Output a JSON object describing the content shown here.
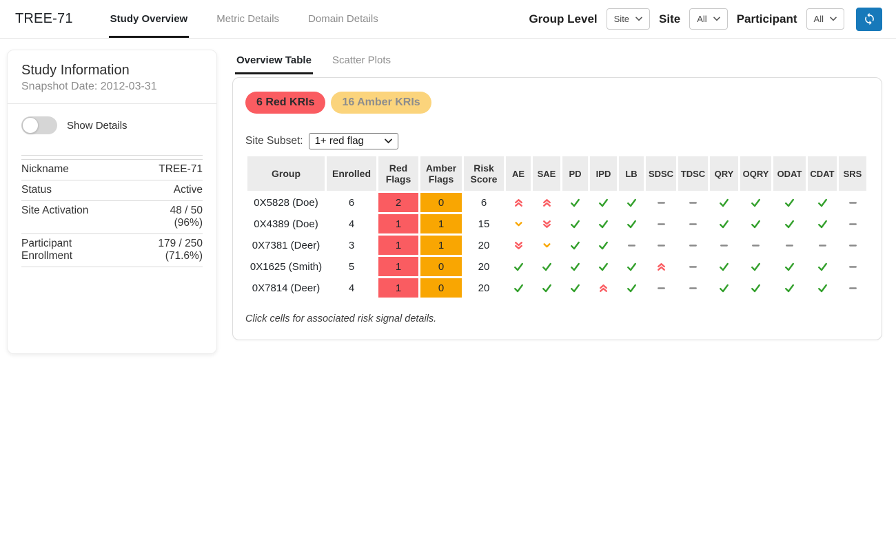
{
  "colors": {
    "red": "#fa5c61",
    "amber": "#f9a602",
    "amber_badge": "#fbd47c",
    "green": "#33a02c",
    "grey": "#8a8a8a",
    "blue": "#1779ba",
    "header_grey": "#ececec"
  },
  "topbar": {
    "title": "TREE-71",
    "tabs": [
      {
        "label": "Study Overview",
        "active": true
      },
      {
        "label": "Metric Details",
        "active": false
      },
      {
        "label": "Domain Details",
        "active": false
      }
    ],
    "filters": [
      {
        "label": "Group Level",
        "value": "Site"
      },
      {
        "label": "Site",
        "value": "All"
      },
      {
        "label": "Participant",
        "value": "All"
      }
    ]
  },
  "study_info": {
    "title": "Study Information",
    "snapshot": "Snapshot Date: 2012-03-31",
    "toggle_label": "Show Details",
    "toggle_state": "off",
    "rows": [
      {
        "label": "Nickname",
        "value": "TREE-71"
      },
      {
        "label": "Status",
        "value": "Active"
      },
      {
        "label": "Site Activation",
        "value": "48 / 50\n(96%)"
      },
      {
        "label": "Participant Enrollment",
        "value": "179 / 250\n(71.6%)"
      }
    ]
  },
  "main": {
    "tabs": [
      {
        "label": "Overview Table",
        "active": true
      },
      {
        "label": "Scatter Plots",
        "active": false
      }
    ],
    "badges": {
      "red": "6 Red KRIs",
      "amber": "16 Amber KRIs"
    },
    "site_subset": {
      "label": "Site Subset:",
      "value": "1+ red flag"
    },
    "footnote": "Click cells for associated risk signal details."
  },
  "kri_table": {
    "columns": [
      "Group",
      "Enrolled",
      "Red Flags",
      "Amber Flags",
      "Risk Score",
      "AE",
      "SAE",
      "PD",
      "IPD",
      "LB",
      "SDSC",
      "TDSC",
      "QRY",
      "OQRY",
      "ODAT",
      "CDAT",
      "SRS"
    ],
    "icon_legend": {
      "check": "within thresholds",
      "dash": "no data",
      "up2-red": "red flag increasing",
      "down2-red": "red flag decreasing",
      "down1-amber": "amber flag decreasing"
    },
    "rows": [
      {
        "group": "0X5828 (Doe)",
        "enrolled": 6,
        "red_flags": 2,
        "amber_flags": 0,
        "risk_score": 6,
        "kris": [
          "up2-red",
          "up2-red",
          "check",
          "check",
          "check",
          "dash",
          "dash",
          "check",
          "check",
          "check",
          "check",
          "dash"
        ]
      },
      {
        "group": "0X4389 (Doe)",
        "enrolled": 4,
        "red_flags": 1,
        "amber_flags": 1,
        "risk_score": 15,
        "kris": [
          "down1-amber",
          "down2-red",
          "check",
          "check",
          "check",
          "dash",
          "dash",
          "check",
          "check",
          "check",
          "check",
          "dash"
        ]
      },
      {
        "group": "0X7381 (Deer)",
        "enrolled": 3,
        "red_flags": 1,
        "amber_flags": 1,
        "risk_score": 20,
        "kris": [
          "down2-red",
          "down1-amber",
          "check",
          "check",
          "dash",
          "dash",
          "dash",
          "dash",
          "dash",
          "dash",
          "dash",
          "dash"
        ]
      },
      {
        "group": "0X1625 (Smith)",
        "enrolled": 5,
        "red_flags": 1,
        "amber_flags": 0,
        "risk_score": 20,
        "kris": [
          "check",
          "check",
          "check",
          "check",
          "check",
          "up2-red",
          "dash",
          "check",
          "check",
          "check",
          "check",
          "dash"
        ]
      },
      {
        "group": "0X7814 (Deer)",
        "enrolled": 4,
        "red_flags": 1,
        "amber_flags": 0,
        "risk_score": 20,
        "kris": [
          "check",
          "check",
          "check",
          "up2-red",
          "check",
          "dash",
          "dash",
          "check",
          "check",
          "check",
          "check",
          "dash"
        ]
      }
    ]
  }
}
